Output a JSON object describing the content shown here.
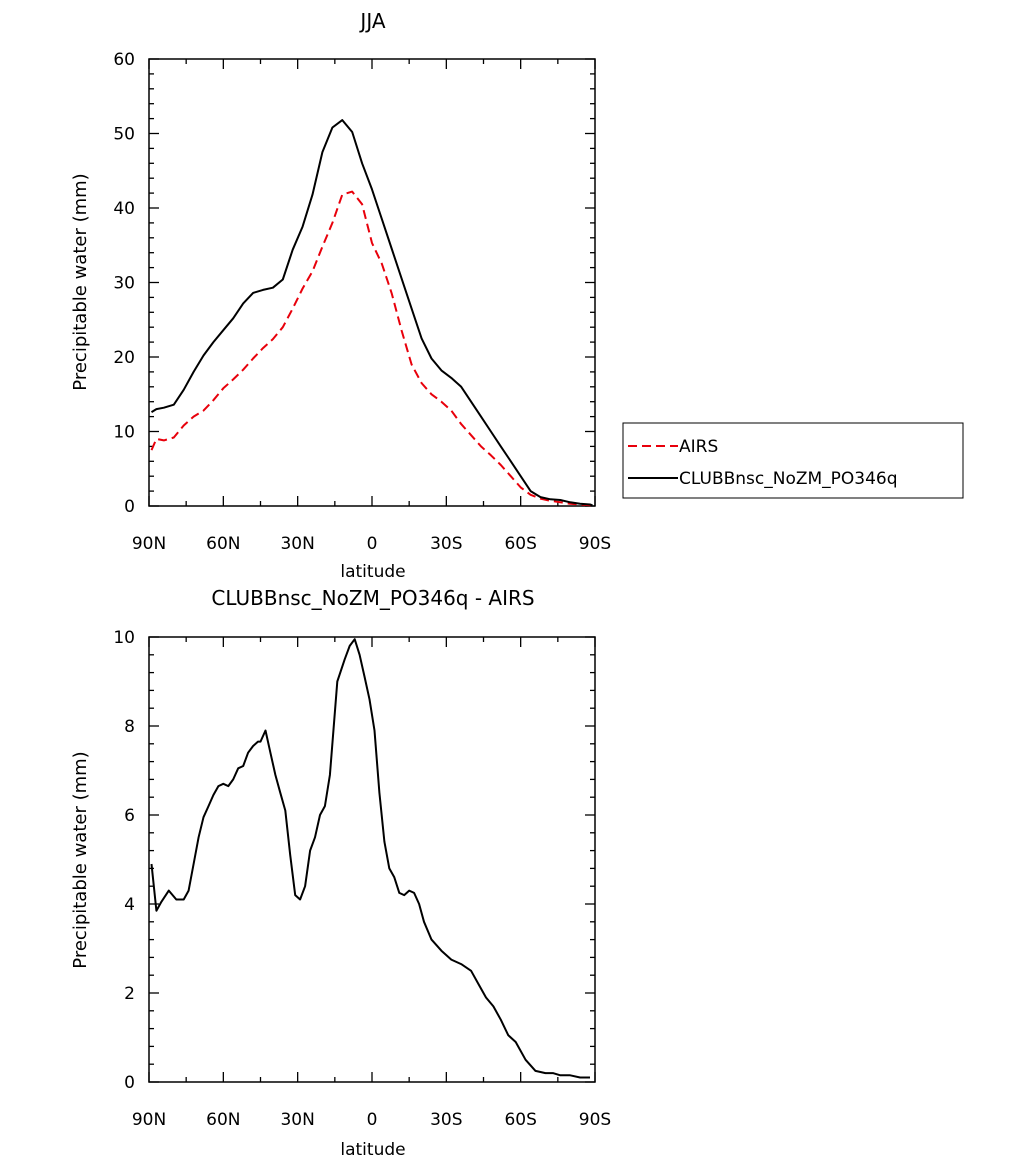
{
  "chart_data": [
    {
      "type": "line",
      "title": "JJA",
      "xlabel": "latitude",
      "ylabel": "Precipitable water (mm)",
      "xlim": [
        90,
        -90
      ],
      "ylim": [
        0,
        60
      ],
      "xticks": [
        90,
        60,
        30,
        0,
        -30,
        -60,
        -90
      ],
      "xtick_labels": [
        "90N",
        "60N",
        "30N",
        "0",
        "30S",
        "60S",
        "90S"
      ],
      "yticks": [
        0,
        10,
        20,
        30,
        40,
        50,
        60
      ],
      "ytick_labels": [
        "0",
        "10",
        "20",
        "30",
        "40",
        "50",
        "60"
      ],
      "grid": false,
      "legend": "right",
      "series": [
        {
          "name": "AIRS",
          "color": "#e8000b",
          "dash": "dashed",
          "x": [
            89,
            87,
            84,
            80,
            76,
            72,
            68,
            64,
            60,
            56,
            52,
            48,
            44,
            40,
            36,
            32,
            28,
            24,
            20,
            16,
            12,
            8,
            4,
            0,
            -4,
            -8,
            -12,
            -16,
            -20,
            -24,
            -28,
            -32,
            -36,
            -40,
            -44,
            -48,
            -52,
            -56,
            -60,
            -64,
            -68,
            -72,
            -76,
            -80,
            -84,
            -88,
            -89
          ],
          "y": [
            7.5,
            9.0,
            8.8,
            9.2,
            10.8,
            12.0,
            12.8,
            14.2,
            15.8,
            17.0,
            18.3,
            19.8,
            21.2,
            22.4,
            24.0,
            26.5,
            29.2,
            31.5,
            34.8,
            38.0,
            41.8,
            42.2,
            40.5,
            35.3,
            32.5,
            28.5,
            23.5,
            19.0,
            16.5,
            15.0,
            14.0,
            12.8,
            11.0,
            9.5,
            8.0,
            6.8,
            5.5,
            4.0,
            2.5,
            1.5,
            1.0,
            0.7,
            0.5,
            0.3,
            0.2,
            0.1,
            0.1
          ]
        },
        {
          "name": "CLUBBnsc_NoZM_PO346q",
          "color": "#000000",
          "dash": "solid",
          "x": [
            89,
            87,
            84,
            80,
            76,
            72,
            68,
            64,
            60,
            56,
            52,
            48,
            44,
            40,
            36,
            32,
            28,
            24,
            20,
            16,
            12,
            8,
            4,
            0,
            -4,
            -8,
            -12,
            -16,
            -20,
            -24,
            -28,
            -32,
            -36,
            -40,
            -44,
            -48,
            -52,
            -56,
            -60,
            -64,
            -68,
            -72,
            -76,
            -80,
            -84,
            -88,
            -89
          ],
          "y": [
            12.6,
            13.0,
            13.2,
            13.6,
            15.6,
            18.0,
            20.2,
            22.0,
            23.6,
            25.2,
            27.2,
            28.6,
            29.0,
            29.3,
            30.4,
            34.4,
            37.5,
            41.8,
            47.5,
            50.8,
            51.8,
            50.2,
            46.0,
            42.5,
            38.5,
            34.5,
            30.5,
            26.5,
            22.5,
            19.8,
            18.2,
            17.2,
            16.0,
            14.0,
            12.0,
            10.0,
            8.0,
            6.0,
            4.0,
            2.0,
            1.2,
            0.9,
            0.8,
            0.5,
            0.3,
            0.2,
            0.1
          ]
        }
      ]
    },
    {
      "type": "line",
      "title": "CLUBBnsc_NoZM_PO346q - AIRS",
      "xlabel": "latitude",
      "ylabel": "Precipitable water (mm)",
      "xlim": [
        90,
        -90
      ],
      "ylim": [
        0,
        10
      ],
      "xticks": [
        90,
        60,
        30,
        0,
        -30,
        -60,
        -90
      ],
      "xtick_labels": [
        "90N",
        "60N",
        "30N",
        "0",
        "30S",
        "60S",
        "90S"
      ],
      "yticks": [
        0,
        2,
        4,
        6,
        8,
        10
      ],
      "ytick_labels": [
        "0",
        "2",
        "4",
        "6",
        "8",
        "10"
      ],
      "grid": false,
      "series": [
        {
          "color": "#000000",
          "dash": "solid",
          "x": [
            89,
            87,
            85,
            82,
            79,
            76,
            74,
            72,
            70,
            68,
            66,
            64,
            62,
            60,
            58,
            56,
            54,
            52,
            50,
            48,
            46,
            45,
            43,
            41,
            39,
            37,
            35,
            33,
            31,
            29,
            27,
            25,
            23,
            21,
            19,
            17,
            14,
            11,
            9,
            7,
            5,
            3,
            1,
            -1,
            -3,
            -5,
            -7,
            -9,
            -11,
            -13,
            -15,
            -17,
            -19,
            -21,
            -24,
            -28,
            -32,
            -36,
            -40,
            -43,
            -46,
            -49,
            -52,
            -55,
            -58,
            -62,
            -66,
            -70,
            -73,
            -76,
            -80,
            -84,
            -88
          ],
          "y": [
            4.9,
            3.85,
            4.05,
            4.3,
            4.1,
            4.1,
            4.3,
            4.9,
            5.5,
            5.95,
            6.2,
            6.45,
            6.65,
            6.7,
            6.65,
            6.8,
            7.05,
            7.1,
            7.4,
            7.55,
            7.65,
            7.65,
            7.9,
            7.4,
            6.9,
            6.5,
            6.1,
            5.1,
            4.2,
            4.1,
            4.4,
            5.2,
            5.5,
            6.0,
            6.2,
            6.9,
            9.0,
            9.5,
            9.8,
            9.95,
            9.6,
            9.1,
            8.6,
            7.9,
            6.5,
            5.4,
            4.8,
            4.6,
            4.25,
            4.2,
            4.3,
            4.25,
            4.0,
            3.6,
            3.2,
            2.95,
            2.75,
            2.65,
            2.5,
            2.2,
            1.9,
            1.7,
            1.4,
            1.05,
            0.9,
            0.5,
            0.25,
            0.2,
            0.2,
            0.15,
            0.15,
            0.1,
            0.1
          ]
        }
      ]
    }
  ]
}
